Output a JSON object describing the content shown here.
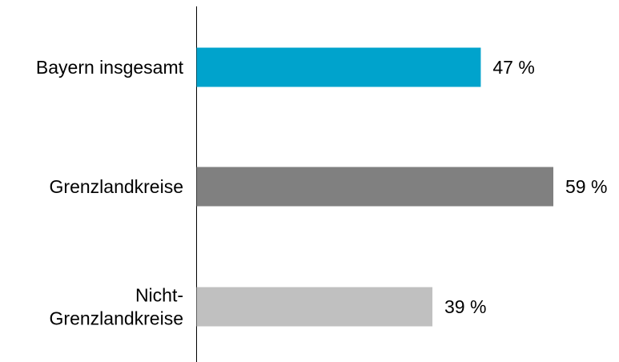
{
  "chart_data": {
    "type": "bar",
    "orientation": "horizontal",
    "categories": [
      [
        "Bayern insgesamt"
      ],
      [
        "Grenzlandkreise"
      ],
      [
        "Nicht-",
        "Grenzlandkreise"
      ]
    ],
    "values": [
      47,
      59,
      39
    ],
    "value_labels": [
      "47 %",
      "59 %",
      "39 %"
    ],
    "colors": [
      "#00a3cc",
      "#808080",
      "#c0c0c0"
    ],
    "xlim": [
      0,
      60
    ],
    "grid": false,
    "legend": "none"
  }
}
